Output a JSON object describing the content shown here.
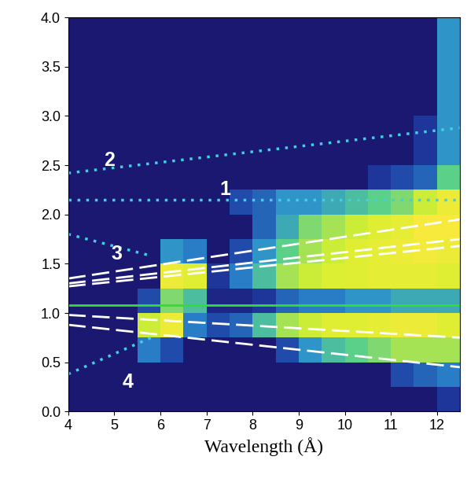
{
  "chart_data": {
    "type": "heatmap",
    "x_label": "Wavelength (Å)",
    "xlim": [
      4,
      12.5
    ],
    "ylim": [
      0,
      4
    ],
    "xticks": [
      4,
      5,
      6,
      7,
      8,
      9,
      10,
      11,
      12
    ],
    "yticks": [
      {
        "value": 0,
        "label": "0.0"
      },
      {
        "value": 0.5,
        "label": "0.5"
      },
      {
        "value": 1,
        "label": "1.0"
      },
      {
        "value": 1.5,
        "label": "1.5"
      },
      {
        "value": 2,
        "label": "2.0"
      },
      {
        "value": 2.5,
        "label": "2.5"
      },
      {
        "value": 3,
        "label": "3.0"
      },
      {
        "value": 3.5,
        "label": "3.5"
      },
      {
        "value": 4,
        "label": "4.0"
      }
    ],
    "grid": false,
    "color_range": [
      0,
      1
    ],
    "x_edges": [
      4,
      4.5,
      5,
      5.5,
      6,
      6.5,
      7,
      7.5,
      8,
      8.5,
      9,
      9.5,
      10,
      10.5,
      11,
      11.5,
      12,
      12.5
    ],
    "y_edges": [
      0,
      0.25,
      0.5,
      0.75,
      1,
      1.25,
      1.5,
      1.75,
      2,
      2.25,
      2.5,
      2.75,
      3,
      3.25,
      3.5,
      3.75,
      4
    ],
    "cells": [
      [
        0.05,
        0.05,
        0.05,
        0.05,
        0.05,
        0.05,
        0.05,
        0.05,
        0.05,
        0.05,
        0.05,
        0.05,
        0.05,
        0.05,
        0.05,
        0.05,
        0.15
      ],
      [
        0.05,
        0.05,
        0.05,
        0.05,
        0.05,
        0.05,
        0.05,
        0.05,
        0.05,
        0.05,
        0.05,
        0.05,
        0.05,
        0.05,
        0.2,
        0.25,
        0.3
      ],
      [
        0.05,
        0.05,
        0.05,
        0.3,
        0.2,
        0.05,
        0.05,
        0.05,
        0.05,
        0.2,
        0.35,
        0.45,
        0.5,
        0.55,
        0.6,
        0.6,
        0.6
      ],
      [
        0.05,
        0.05,
        0.05,
        0.65,
        0.75,
        0.3,
        0.2,
        0.25,
        0.45,
        0.6,
        0.65,
        0.7,
        0.7,
        0.72,
        0.75,
        0.75,
        0.7
      ],
      [
        0.05,
        0.05,
        0.05,
        0.2,
        0.55,
        0.45,
        0.1,
        0.1,
        0.15,
        0.25,
        0.3,
        0.3,
        0.35,
        0.35,
        0.4,
        0.4,
        0.4
      ],
      [
        0.05,
        0.05,
        0.05,
        0.05,
        0.75,
        0.7,
        0.15,
        0.3,
        0.45,
        0.6,
        0.65,
        0.68,
        0.7,
        0.72,
        0.72,
        0.72,
        0.7
      ],
      [
        0.05,
        0.05,
        0.05,
        0.05,
        0.35,
        0.3,
        0.05,
        0.2,
        0.35,
        0.5,
        0.6,
        0.65,
        0.7,
        0.72,
        0.75,
        0.78,
        0.75
      ],
      [
        0.05,
        0.05,
        0.05,
        0.05,
        0.05,
        0.05,
        0.05,
        0.05,
        0.25,
        0.4,
        0.55,
        0.6,
        0.65,
        0.7,
        0.72,
        0.8,
        0.8
      ],
      [
        0.05,
        0.05,
        0.05,
        0.05,
        0.05,
        0.05,
        0.05,
        0.2,
        0.25,
        0.35,
        0.35,
        0.4,
        0.45,
        0.5,
        0.55,
        0.65,
        0.75
      ],
      [
        0.05,
        0.05,
        0.05,
        0.05,
        0.05,
        0.05,
        0.05,
        0.05,
        0.05,
        0.05,
        0.05,
        0.05,
        0.05,
        0.15,
        0.2,
        0.25,
        0.5
      ],
      [
        0.05,
        0.05,
        0.05,
        0.05,
        0.05,
        0.05,
        0.05,
        0.05,
        0.05,
        0.05,
        0.05,
        0.05,
        0.05,
        0.05,
        0.05,
        0.15,
        0.35
      ],
      [
        0.05,
        0.05,
        0.05,
        0.05,
        0.05,
        0.05,
        0.05,
        0.05,
        0.05,
        0.05,
        0.05,
        0.05,
        0.05,
        0.05,
        0.05,
        0.15,
        0.35
      ],
      [
        0.05,
        0.05,
        0.05,
        0.05,
        0.05,
        0.05,
        0.05,
        0.05,
        0.05,
        0.05,
        0.05,
        0.05,
        0.05,
        0.05,
        0.05,
        0.05,
        0.35
      ],
      [
        0.05,
        0.05,
        0.05,
        0.05,
        0.05,
        0.05,
        0.05,
        0.05,
        0.05,
        0.05,
        0.05,
        0.05,
        0.05,
        0.05,
        0.05,
        0.05,
        0.35
      ],
      [
        0.05,
        0.05,
        0.05,
        0.05,
        0.05,
        0.05,
        0.05,
        0.05,
        0.05,
        0.05,
        0.05,
        0.05,
        0.05,
        0.05,
        0.05,
        0.05,
        0.35
      ],
      [
        0.05,
        0.05,
        0.05,
        0.05,
        0.05,
        0.05,
        0.05,
        0.05,
        0.05,
        0.05,
        0.05,
        0.05,
        0.05,
        0.05,
        0.05,
        0.05,
        0.35
      ]
    ],
    "lines": [
      {
        "x": [
          4,
          12.5
        ],
        "values": [
          2.15,
          2.15
        ],
        "color": "#40d0e0",
        "line_style": "dotted"
      },
      {
        "x": [
          4,
          12.5
        ],
        "values": [
          2.42,
          2.88
        ],
        "color": "#40d0e0",
        "line_style": "dotted"
      },
      {
        "x": [
          4,
          5.8
        ],
        "values": [
          1.8,
          1.58
        ],
        "color": "#40d0e0",
        "line_style": "dotted"
      },
      {
        "x": [
          4,
          5.8
        ],
        "values": [
          0.38,
          0.75
        ],
        "color": "#40d0e0",
        "line_style": "dotted"
      },
      {
        "x": [
          4,
          12.5
        ],
        "values": [
          1.08,
          1.08
        ],
        "color": "#33dd33",
        "line_style": "solid"
      },
      {
        "x": [
          4,
          12.5
        ],
        "values": [
          1.35,
          1.95
        ],
        "color": "#ffffff",
        "line_style": "dashed"
      },
      {
        "x": [
          4,
          12.5
        ],
        "values": [
          1.3,
          1.75
        ],
        "color": "#ffffff",
        "line_style": "dashed"
      },
      {
        "x": [
          4,
          12.5
        ],
        "values": [
          1.27,
          1.68
        ],
        "color": "#ffffff",
        "line_style": "dashed"
      },
      {
        "x": [
          4,
          12.5
        ],
        "values": [
          0.98,
          0.75
        ],
        "color": "#ffffff",
        "line_style": "dashed"
      },
      {
        "x": [
          4,
          12.5
        ],
        "values": [
          0.88,
          0.45
        ],
        "color": "#ffffff",
        "line_style": "dashed"
      }
    ],
    "annotations": [
      {
        "text": "2",
        "x": 4.9,
        "y": 2.55
      },
      {
        "text": "1",
        "x": 7.4,
        "y": 2.25
      },
      {
        "text": "3",
        "x": 5.05,
        "y": 1.6
      },
      {
        "text": "4",
        "x": 5.3,
        "y": 0.3
      }
    ]
  }
}
